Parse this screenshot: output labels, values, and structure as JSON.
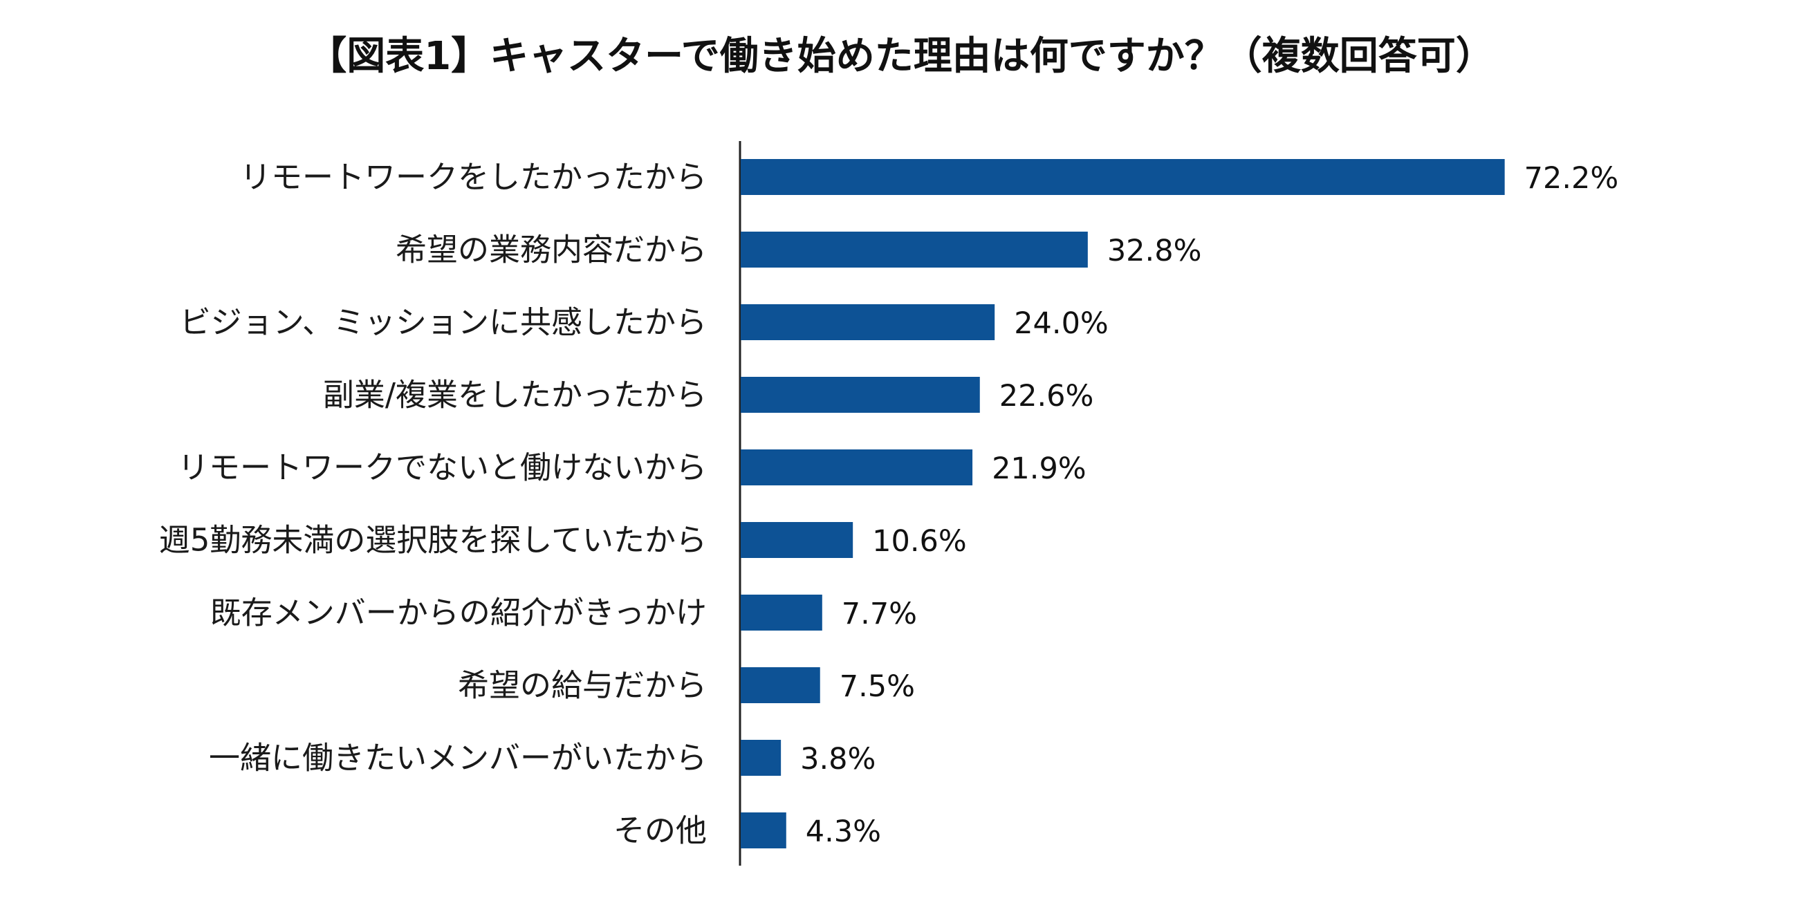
{
  "chart_data": {
    "type": "bar",
    "orientation": "horizontal",
    "title": "【図表1】キャスターで働き始めた理由は何ですか？（複数回答可）",
    "xlabel": "",
    "ylabel": "",
    "xlim": [
      0,
      100
    ],
    "grid": false,
    "legend": "none",
    "bar_color": "#0d5295",
    "unit": "%",
    "categories": [
      "リモートワークをしたかったから",
      "希望の業務内容だから",
      "ビジョン、ミッションに共感したから",
      "副業/複業をしたかったから",
      "リモートワークでないと働けないから",
      "週5勤務未満の選択肢を探していたから",
      "既存メンバーからの紹介がきっかけ",
      "希望の給与だから",
      "一緒に働きたいメンバーがいたから",
      "その他"
    ],
    "values": [
      72.2,
      32.8,
      24.0,
      22.6,
      21.9,
      10.6,
      7.7,
      7.5,
      3.8,
      4.3
    ],
    "value_labels": [
      "72.2%",
      "32.8%",
      "24.0%",
      "22.6%",
      "21.9%",
      "10.6%",
      "7.7%",
      "7.5%",
      "3.8%",
      "4.3%"
    ]
  }
}
